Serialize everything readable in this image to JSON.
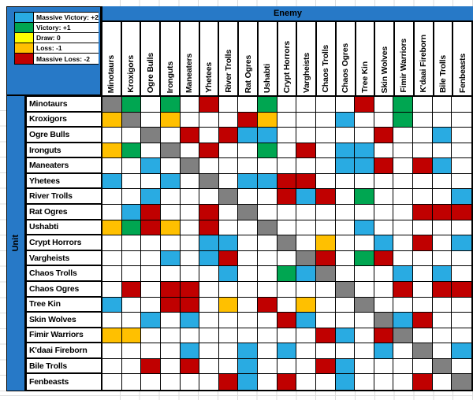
{
  "banner": {
    "enemy_label": "Enemy",
    "unit_label": "Unit"
  },
  "legend": {
    "items": [
      {
        "label": "Massive Victory: +2",
        "code": "mv",
        "color": "#29ABE2"
      },
      {
        "label": "Victory: +1",
        "code": "v",
        "color": "#00A651"
      },
      {
        "label": "Draw: 0",
        "code": "d",
        "color": "#FFFF00"
      },
      {
        "label": "Loss: -1",
        "code": "l",
        "color": "#FFC000"
      },
      {
        "label": "Massive Loss: -2",
        "code": "ml",
        "color": "#C00000"
      }
    ]
  },
  "colors": {
    "cell": {
      "mv": "#29ABE2",
      "v": "#00A651",
      "d": "#FFFFFF",
      "l": "#FFC000",
      "ml": "#C00000",
      "self": "#808080"
    },
    "panel_blue": "#2779C7",
    "border": "#000000",
    "margin_line": "#DCDCDC"
  },
  "units": [
    "Minotaurs",
    "Kroxigors",
    "Ogre Bulls",
    "Ironguts",
    "Maneaters",
    "Yhetees",
    "River Trolls",
    "Rat Ogres",
    "Ushabti",
    "Crypt Horrors",
    "Vargheists",
    "Chaos Trolls",
    "Chaos Ogres",
    "Tree Kin",
    "Skin Wolves",
    "Fimir Warriors",
    "K'daai Fireborn",
    "Bile Trolls",
    "Fenbeasts"
  ],
  "matrix": {
    "rows": [
      {
        "unit": "Minotaurs",
        "cells": [
          "self",
          "v",
          "d",
          "v",
          "d",
          "ml",
          "d",
          "d",
          "v",
          "d",
          "d",
          "d",
          "d",
          "ml",
          "d",
          "v",
          "d",
          "d",
          "d"
        ]
      },
      {
        "unit": "Kroxigors",
        "cells": [
          "l",
          "self",
          "d",
          "l",
          "d",
          "d",
          "d",
          "ml",
          "l",
          "d",
          "d",
          "d",
          "mv",
          "d",
          "d",
          "v",
          "d",
          "d",
          "d"
        ]
      },
      {
        "unit": "Ogre Bulls",
        "cells": [
          "d",
          "d",
          "self",
          "d",
          "ml",
          "d",
          "ml",
          "mv",
          "mv",
          "d",
          "d",
          "d",
          "d",
          "d",
          "ml",
          "d",
          "d",
          "mv",
          "d"
        ]
      },
      {
        "unit": "Ironguts",
        "cells": [
          "l",
          "v",
          "d",
          "self",
          "d",
          "ml",
          "d",
          "d",
          "v",
          "d",
          "ml",
          "d",
          "mv",
          "mv",
          "d",
          "d",
          "d",
          "d",
          "d"
        ]
      },
      {
        "unit": "Maneaters",
        "cells": [
          "d",
          "d",
          "mv",
          "d",
          "self",
          "d",
          "d",
          "d",
          "d",
          "d",
          "d",
          "d",
          "mv",
          "mv",
          "ml",
          "d",
          "ml",
          "mv",
          "d"
        ]
      },
      {
        "unit": "Yhetees",
        "cells": [
          "mv",
          "d",
          "d",
          "mv",
          "d",
          "self",
          "d",
          "mv",
          "mv",
          "ml",
          "ml",
          "d",
          "d",
          "d",
          "d",
          "d",
          "d",
          "d",
          "d"
        ]
      },
      {
        "unit": "River Trolls",
        "cells": [
          "d",
          "d",
          "mv",
          "d",
          "d",
          "d",
          "self",
          "d",
          "d",
          "ml",
          "mv",
          "ml",
          "d",
          "v",
          "d",
          "d",
          "d",
          "d",
          "mv"
        ]
      },
      {
        "unit": "Rat Ogres",
        "cells": [
          "d",
          "mv",
          "ml",
          "d",
          "d",
          "ml",
          "d",
          "self",
          "d",
          "d",
          "d",
          "d",
          "d",
          "d",
          "d",
          "d",
          "ml",
          "ml",
          "ml"
        ]
      },
      {
        "unit": "Ushabti",
        "cells": [
          "l",
          "v",
          "ml",
          "l",
          "d",
          "ml",
          "d",
          "d",
          "self",
          "d",
          "d",
          "d",
          "d",
          "mv",
          "d",
          "d",
          "d",
          "d",
          "d"
        ]
      },
      {
        "unit": "Crypt Horrors",
        "cells": [
          "d",
          "d",
          "d",
          "d",
          "d",
          "mv",
          "mv",
          "d",
          "d",
          "self",
          "d",
          "l",
          "d",
          "d",
          "mv",
          "d",
          "ml",
          "d",
          "mv"
        ]
      },
      {
        "unit": "Vargheists",
        "cells": [
          "d",
          "d",
          "d",
          "mv",
          "d",
          "mv",
          "ml",
          "d",
          "d",
          "d",
          "self",
          "ml",
          "d",
          "v",
          "ml",
          "d",
          "d",
          "d",
          "d"
        ]
      },
      {
        "unit": "Chaos Trolls",
        "cells": [
          "d",
          "d",
          "d",
          "d",
          "d",
          "d",
          "mv",
          "d",
          "d",
          "v",
          "mv",
          "self",
          "d",
          "d",
          "d",
          "mv",
          "d",
          "mv",
          "d"
        ]
      },
      {
        "unit": "Chaos Ogres",
        "cells": [
          "d",
          "ml",
          "d",
          "ml",
          "ml",
          "d",
          "d",
          "d",
          "d",
          "d",
          "d",
          "d",
          "self",
          "d",
          "d",
          "ml",
          "d",
          "ml",
          "ml"
        ]
      },
      {
        "unit": "Tree Kin",
        "cells": [
          "mv",
          "d",
          "d",
          "ml",
          "ml",
          "d",
          "l",
          "d",
          "ml",
          "d",
          "l",
          "d",
          "d",
          "self",
          "d",
          "d",
          "d",
          "d",
          "d"
        ]
      },
      {
        "unit": "Skin Wolves",
        "cells": [
          "d",
          "d",
          "mv",
          "d",
          "mv",
          "d",
          "d",
          "d",
          "d",
          "ml",
          "mv",
          "d",
          "d",
          "d",
          "self",
          "mv",
          "ml",
          "d",
          "d"
        ]
      },
      {
        "unit": "Fimir Warriors",
        "cells": [
          "l",
          "l",
          "d",
          "d",
          "d",
          "d",
          "d",
          "d",
          "d",
          "d",
          "d",
          "ml",
          "mv",
          "d",
          "ml",
          "self",
          "d",
          "d",
          "d"
        ]
      },
      {
        "unit": "K'daai Fireborn",
        "cells": [
          "d",
          "d",
          "d",
          "d",
          "mv",
          "d",
          "d",
          "mv",
          "d",
          "mv",
          "d",
          "d",
          "d",
          "d",
          "mv",
          "d",
          "self",
          "d",
          "mv"
        ]
      },
      {
        "unit": "Bile Trolls",
        "cells": [
          "d",
          "d",
          "ml",
          "d",
          "ml",
          "d",
          "d",
          "mv",
          "d",
          "d",
          "d",
          "ml",
          "mv",
          "d",
          "d",
          "d",
          "d",
          "self",
          "d"
        ]
      },
      {
        "unit": "Fenbeasts",
        "cells": [
          "d",
          "d",
          "d",
          "d",
          "d",
          "d",
          "ml",
          "mv",
          "d",
          "ml",
          "d",
          "d",
          "mv",
          "d",
          "d",
          "d",
          "ml",
          "d",
          "self"
        ]
      }
    ]
  }
}
